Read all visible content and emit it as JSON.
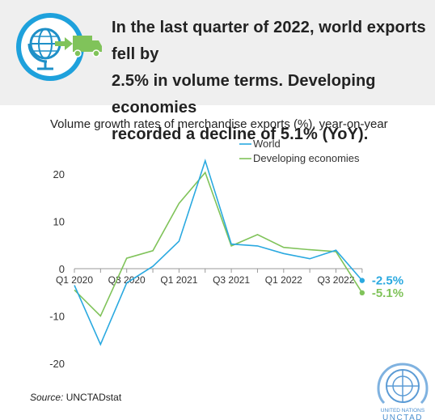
{
  "headline": {
    "line1": "In the last quarter of 2022, world exports fell by",
    "line2": "2.5% in volume terms. Developing economies",
    "line3": "recorded a decline of 5.1% (YoY)."
  },
  "source": {
    "label": "Source:",
    "value": "UNCTADstat"
  },
  "emblem": {
    "line1": "UNITED NATIONS",
    "line2": "UNCTAD"
  },
  "colors": {
    "world": "#2aa9e0",
    "developing": "#80c35a"
  },
  "chart_data": {
    "type": "line",
    "title": "Volume growth rates of merchandise exports (%), year-on-year",
    "x": [
      "Q1 2020",
      "Q2 2020",
      "Q3 2020",
      "Q4 2020",
      "Q1 2021",
      "Q2 2021",
      "Q3 2021",
      "Q4 2021",
      "Q1 2022",
      "Q2 2022",
      "Q3 2022",
      "Q4 2022"
    ],
    "x_tick_labels": [
      "Q1 2020",
      "Q3 2020",
      "Q1 2021",
      "Q3 2021",
      "Q1 2022",
      "Q3 2022"
    ],
    "y_ticks": [
      -20,
      -10,
      0,
      10,
      20
    ],
    "ylim": [
      -22,
      25
    ],
    "legend_position": "top-right",
    "grid": false,
    "series": [
      {
        "name": "World",
        "color": "#2aa9e0",
        "values": [
          -3.5,
          -16,
          -3,
          0.5,
          5.8,
          22.8,
          5.2,
          4.8,
          3.2,
          2.1,
          3.9,
          -2.5
        ]
      },
      {
        "name": "Developing economies",
        "color": "#80c35a",
        "values": [
          -4.5,
          -10,
          2.2,
          3.8,
          13.8,
          20.3,
          4.8,
          7.2,
          4.5,
          4.0,
          3.6,
          -5.1
        ]
      }
    ],
    "end_labels": [
      "-2.5%",
      "-5.1%"
    ]
  }
}
